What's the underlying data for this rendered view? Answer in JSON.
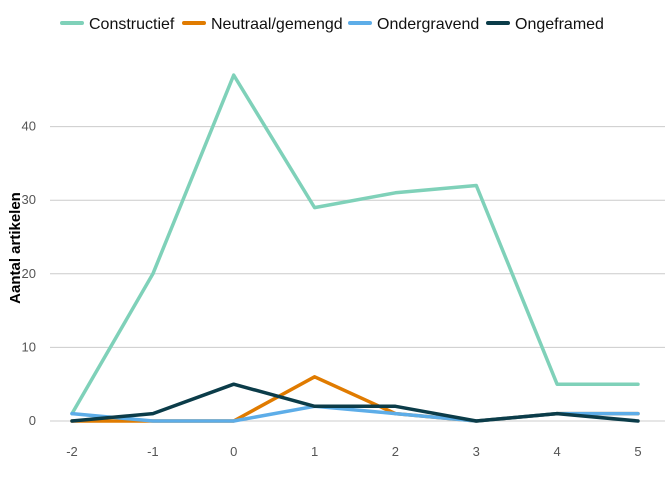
{
  "chart_data": {
    "type": "line",
    "title": "",
    "xlabel": "",
    "ylabel": "Aantal artikelen",
    "x": [
      -2,
      -1,
      0,
      1,
      2,
      3,
      4,
      5
    ],
    "x_tick_labels": [
      "-2",
      "-1",
      "0",
      "1",
      "2",
      "3",
      "4",
      "5"
    ],
    "ylim": [
      0,
      50
    ],
    "y_ticks": [
      0,
      10,
      20,
      30,
      40
    ],
    "y_tick_labels": [
      "0",
      "10",
      "20",
      "30",
      "40"
    ],
    "grid": "horizontal",
    "legend_position": "top",
    "series": [
      {
        "name": "Constructief",
        "color": "#7fd1b9",
        "values": [
          1,
          20,
          47,
          29,
          31,
          32,
          5,
          5
        ]
      },
      {
        "name": "Neutraal/gemengd",
        "color": "#e07b00",
        "values": [
          0,
          0,
          0,
          6,
          1,
          0,
          1,
          1
        ]
      },
      {
        "name": "Ondergravend",
        "color": "#5dade8",
        "values": [
          1,
          0,
          0,
          2,
          1,
          0,
          1,
          1
        ]
      },
      {
        "name": "Ongeframed",
        "color": "#0b3c49",
        "values": [
          0,
          1,
          5,
          2,
          2,
          0,
          1,
          0
        ]
      }
    ]
  }
}
